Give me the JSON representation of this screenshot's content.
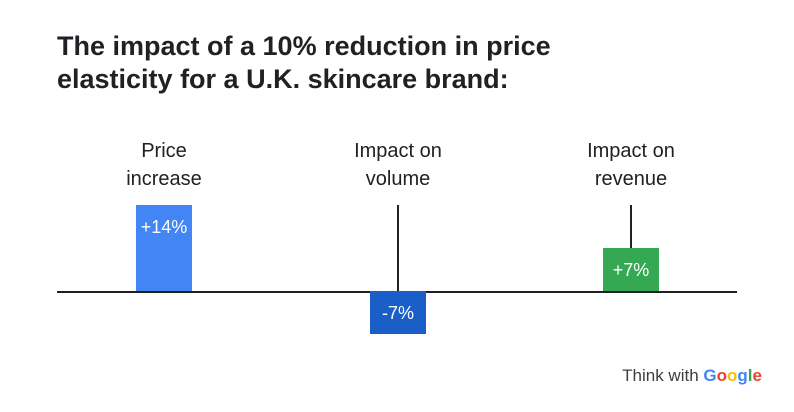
{
  "chart_data": {
    "type": "bar",
    "title": "The impact of a 10% reduction in price elasticity for a U.K. skincare brand:",
    "categories": [
      "Price increase",
      "Impact on volume",
      "Impact on revenue"
    ],
    "values": [
      14,
      -7,
      7
    ],
    "value_labels": [
      "+14%",
      "-7%",
      "+7%"
    ],
    "colors": [
      "#4285f4",
      "#1a5fc8",
      "#34a853"
    ],
    "footer": "Think with",
    "brand": "Google"
  }
}
